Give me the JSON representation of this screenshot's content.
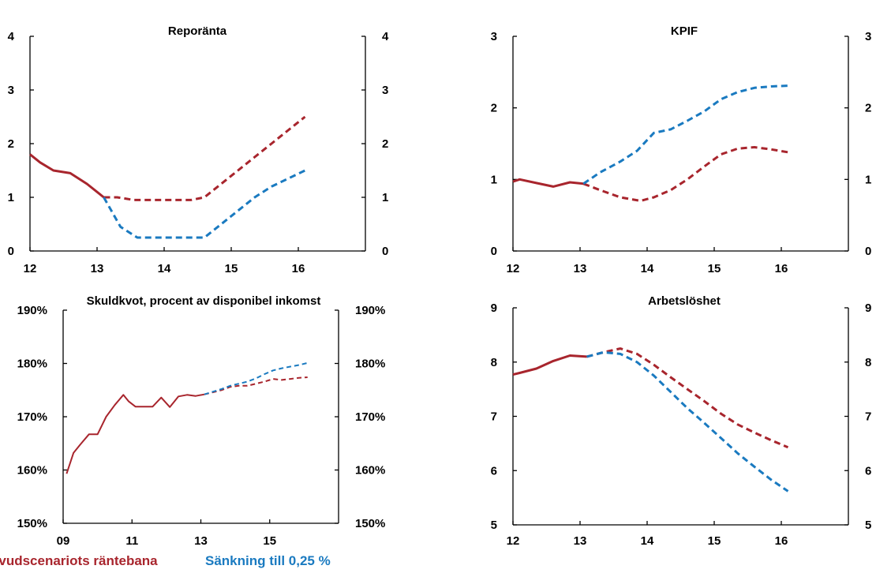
{
  "colors": {
    "main": "#a8252d",
    "alt": "#1a7ac0",
    "axis": "#000000"
  },
  "legend": {
    "main_label": "uvudscenariots räntebana",
    "alt_label": "Sänkning till 0,25 %"
  },
  "chart_data": [
    {
      "id": "reporanta",
      "type": "line",
      "title": "Reporänta",
      "x_range": [
        12,
        17
      ],
      "xticks": [
        "12",
        "13",
        "14",
        "15",
        "16"
      ],
      "xtick_values": [
        12,
        13,
        14,
        15,
        16
      ],
      "ylim": [
        0,
        4
      ],
      "yticks": [
        "0",
        "1",
        "2",
        "3",
        "4"
      ],
      "ytick_values": [
        0,
        1,
        2,
        3,
        4
      ],
      "series": [
        {
          "role": "main",
          "style": "solid",
          "width": 3,
          "x": [
            12.0,
            12.15,
            12.35,
            12.6,
            12.85,
            13.1
          ],
          "y": [
            1.8,
            1.65,
            1.5,
            1.45,
            1.25,
            1.0
          ]
        },
        {
          "role": "main",
          "style": "dashed",
          "width": 3,
          "x": [
            13.1,
            13.3,
            13.55,
            13.8,
            14.1,
            14.4,
            14.6,
            14.85,
            15.1,
            15.35,
            15.6,
            15.85,
            16.1
          ],
          "y": [
            1.0,
            1.0,
            0.95,
            0.95,
            0.95,
            0.95,
            1.0,
            1.25,
            1.5,
            1.75,
            2.0,
            2.25,
            2.5
          ]
        },
        {
          "role": "alt",
          "style": "dashed",
          "width": 3,
          "x": [
            13.1,
            13.35,
            13.6,
            13.85,
            14.1,
            14.35,
            14.6,
            14.85,
            15.1,
            15.35,
            15.6,
            15.85,
            16.1
          ],
          "y": [
            1.0,
            0.45,
            0.25,
            0.25,
            0.25,
            0.25,
            0.25,
            0.5,
            0.75,
            1.0,
            1.2,
            1.35,
            1.5
          ]
        }
      ]
    },
    {
      "id": "kpif",
      "type": "line",
      "title": "KPIF",
      "x_range": [
        12,
        17
      ],
      "xticks": [
        "12",
        "13",
        "14",
        "15",
        "16"
      ],
      "xtick_values": [
        12,
        13,
        14,
        15,
        16
      ],
      "ylim": [
        0,
        3
      ],
      "yticks": [
        "0",
        "1",
        "2",
        "3"
      ],
      "ytick_values": [
        0,
        1,
        2,
        3
      ],
      "series": [
        {
          "role": "main",
          "style": "solid",
          "width": 3,
          "x": [
            12.0,
            12.1,
            12.35,
            12.6,
            12.85,
            13.05
          ],
          "y": [
            0.97,
            1.0,
            0.95,
            0.9,
            0.96,
            0.94
          ]
        },
        {
          "role": "main",
          "style": "dashed",
          "width": 3,
          "x": [
            13.05,
            13.3,
            13.6,
            13.9,
            14.1,
            14.35,
            14.6,
            14.85,
            15.1,
            15.35,
            15.6,
            15.85,
            16.1
          ],
          "y": [
            0.94,
            0.85,
            0.75,
            0.7,
            0.75,
            0.85,
            1.0,
            1.18,
            1.35,
            1.43,
            1.45,
            1.42,
            1.38
          ]
        },
        {
          "role": "alt",
          "style": "dashed",
          "width": 3,
          "x": [
            13.05,
            13.3,
            13.6,
            13.85,
            14.1,
            14.35,
            14.6,
            14.85,
            15.1,
            15.35,
            15.6,
            15.85,
            16.1
          ],
          "y": [
            0.94,
            1.1,
            1.25,
            1.4,
            1.65,
            1.7,
            1.82,
            1.95,
            2.12,
            2.22,
            2.28,
            2.3,
            2.31
          ]
        }
      ]
    },
    {
      "id": "skuldkvot",
      "type": "line",
      "title": "Skuldkvot, procent av disponibel inkomst",
      "x_range": [
        9,
        17
      ],
      "xticks": [
        "09",
        "11",
        "13",
        "15"
      ],
      "xtick_values": [
        9,
        11,
        13,
        15
      ],
      "ylim": [
        150,
        190
      ],
      "yticks": [
        "150%",
        "160%",
        "170%",
        "180%",
        "190%"
      ],
      "ytick_values": [
        150,
        160,
        170,
        180,
        190
      ],
      "series": [
        {
          "role": "main",
          "style": "solid",
          "width": 2,
          "x": [
            9.1,
            9.3,
            9.5,
            9.75,
            10.0,
            10.25,
            10.5,
            10.75,
            10.9,
            11.1,
            11.35,
            11.6,
            11.85,
            12.1,
            12.35,
            12.6,
            12.85,
            13.1
          ],
          "y": [
            159.3,
            163.2,
            164.8,
            166.7,
            166.7,
            170.0,
            172.2,
            174.1,
            172.9,
            171.9,
            171.9,
            171.9,
            173.6,
            171.8,
            173.8,
            174.1,
            173.9,
            174.2
          ]
        },
        {
          "role": "main",
          "style": "dashed",
          "width": 2,
          "x": [
            13.1,
            13.35,
            13.6,
            13.85,
            14.1,
            14.35,
            14.6,
            14.85,
            15.1,
            15.35,
            15.6,
            15.85,
            16.1
          ],
          "y": [
            174.2,
            174.6,
            175.0,
            175.6,
            175.8,
            175.8,
            176.2,
            176.6,
            177.1,
            176.9,
            177.1,
            177.3,
            177.4
          ]
        },
        {
          "role": "alt",
          "style": "dashed",
          "width": 2,
          "x": [
            13.1,
            13.35,
            13.6,
            13.85,
            14.1,
            14.35,
            14.6,
            14.85,
            15.1,
            15.35,
            15.6,
            15.85,
            16.1
          ],
          "y": [
            174.2,
            174.7,
            175.2,
            175.8,
            176.2,
            176.6,
            177.2,
            178.0,
            178.7,
            179.1,
            179.4,
            179.7,
            180.1
          ]
        }
      ]
    },
    {
      "id": "arbetsloshet",
      "type": "line",
      "title": "Arbetslöshet",
      "x_range": [
        12,
        17
      ],
      "xticks": [
        "12",
        "13",
        "14",
        "15",
        "16"
      ],
      "xtick_values": [
        12,
        13,
        14,
        15,
        16
      ],
      "ylim": [
        5,
        9
      ],
      "yticks": [
        "5",
        "6",
        "7",
        "8",
        "9"
      ],
      "ytick_values": [
        5,
        6,
        7,
        8,
        9
      ],
      "series": [
        {
          "role": "main",
          "style": "solid",
          "width": 3,
          "x": [
            12.0,
            12.1,
            12.35,
            12.6,
            12.85,
            13.1
          ],
          "y": [
            7.77,
            7.8,
            7.88,
            8.02,
            8.12,
            8.1
          ]
        },
        {
          "role": "main",
          "style": "dashed",
          "width": 3,
          "x": [
            13.1,
            13.35,
            13.6,
            13.85,
            14.1,
            14.35,
            14.6,
            14.85,
            15.1,
            15.35,
            15.6,
            15.85,
            16.1
          ],
          "y": [
            8.1,
            8.18,
            8.25,
            8.15,
            7.95,
            7.72,
            7.5,
            7.28,
            7.05,
            6.85,
            6.7,
            6.56,
            6.43
          ]
        },
        {
          "role": "alt",
          "style": "dashed",
          "width": 3,
          "x": [
            13.1,
            13.35,
            13.6,
            13.85,
            14.1,
            14.35,
            14.6,
            14.85,
            15.1,
            15.35,
            15.6,
            15.85,
            16.1
          ],
          "y": [
            8.1,
            8.18,
            8.15,
            8.0,
            7.75,
            7.45,
            7.15,
            6.88,
            6.6,
            6.32,
            6.07,
            5.83,
            5.62
          ]
        }
      ]
    }
  ]
}
